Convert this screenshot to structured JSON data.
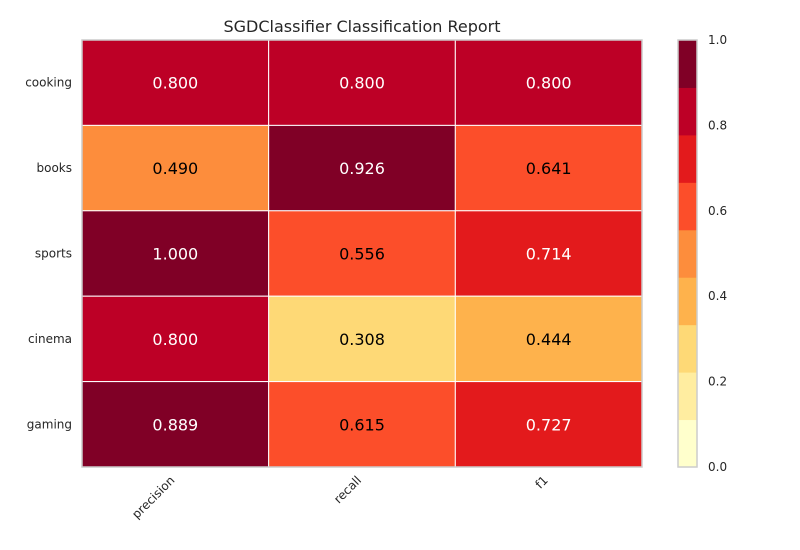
{
  "chart_data": {
    "type": "heatmap",
    "title": "SGDClassifier Classification Report",
    "rows": [
      "cooking",
      "books",
      "sports",
      "cinema",
      "gaming"
    ],
    "columns": [
      "precision",
      "recall",
      "f1"
    ],
    "values": [
      [
        0.8,
        0.8,
        0.8
      ],
      [
        0.49,
        0.926,
        0.641
      ],
      [
        1.0,
        0.556,
        0.714
      ],
      [
        0.8,
        0.308,
        0.444
      ],
      [
        0.889,
        0.615,
        0.727
      ]
    ],
    "value_labels": [
      [
        "0.800",
        "0.800",
        "0.800"
      ],
      [
        "0.490",
        "0.926",
        "0.641"
      ],
      [
        "1.000",
        "0.556",
        "0.714"
      ],
      [
        "0.800",
        "0.308",
        "0.444"
      ],
      [
        "0.889",
        "0.615",
        "0.727"
      ]
    ],
    "colorbar": {
      "range": [
        0,
        1
      ],
      "ticks": [
        "0.0",
        "0.2",
        "0.4",
        "0.6",
        "0.8",
        "1.0"
      ],
      "bins": 9,
      "colors": [
        "#ffffcc",
        "#ffeda0",
        "#fed976",
        "#feb24c",
        "#fd8d3c",
        "#fc4e2a",
        "#e31a1c",
        "#bd0026",
        "#800026"
      ]
    },
    "grid": false
  }
}
